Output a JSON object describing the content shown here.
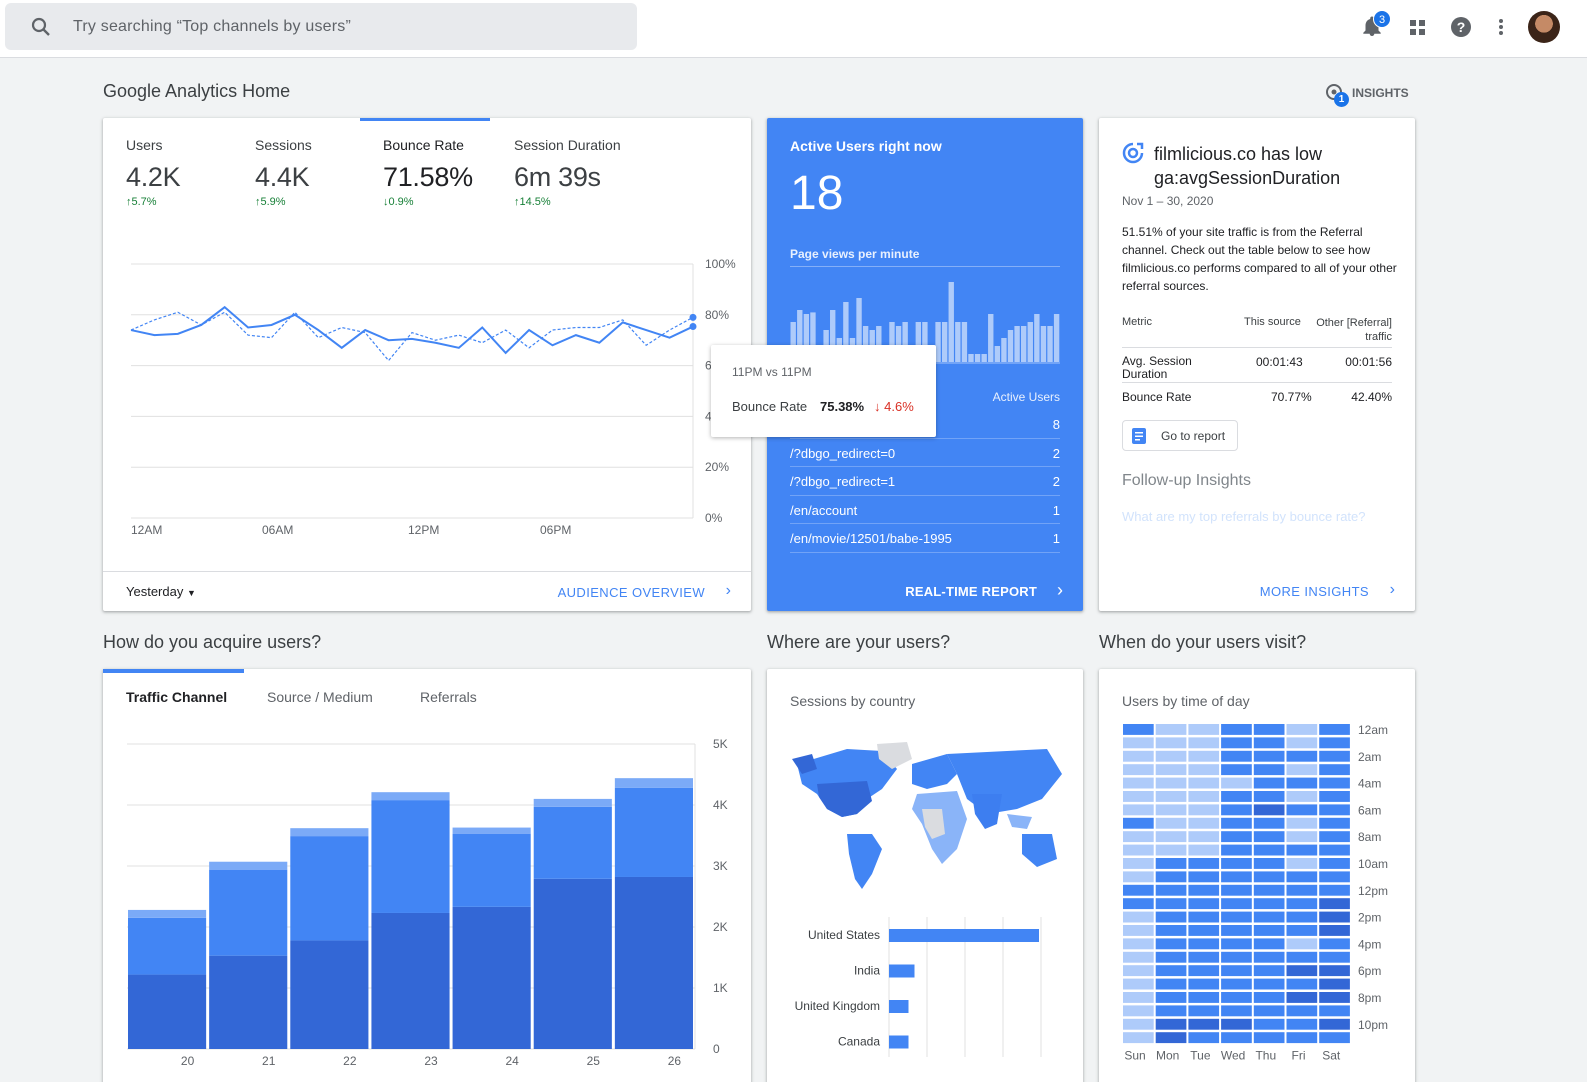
{
  "search": {
    "placeholder": "Try searching “Top channels by users”"
  },
  "topbar": {
    "notifications_count": "3",
    "icons": [
      "bell-icon",
      "apps-icon",
      "help-icon",
      "more-vert-icon"
    ]
  },
  "page": {
    "title": "Google Analytics Home",
    "insights_label": "INSIGHTS",
    "insights_badge": "1"
  },
  "overview": {
    "metrics": [
      {
        "label": "Users",
        "value": "4.2K",
        "change": "5.7%",
        "direction": "up"
      },
      {
        "label": "Sessions",
        "value": "4.4K",
        "change": "5.9%",
        "direction": "up"
      },
      {
        "label": "Bounce Rate",
        "value": "71.58%",
        "change": "0.9%",
        "direction": "down",
        "selected": true
      },
      {
        "label": "Session Duration",
        "value": "6m 39s",
        "change": "14.5%",
        "direction": "up"
      }
    ],
    "date_range": "Yesterday",
    "link": "AUDIENCE OVERVIEW",
    "chart_data": {
      "type": "line",
      "metric": "Bounce Rate",
      "x_labels": [
        "12AM",
        "06AM",
        "12PM",
        "06PM"
      ],
      "y_ticks": [
        "100%",
        "80%",
        "60%",
        "40%",
        "20%",
        "0%"
      ],
      "ylim": [
        0,
        100
      ],
      "series": [
        {
          "name": "",
          "style": "solid",
          "values": [
            74,
            72,
            72.5,
            76,
            83,
            75,
            76,
            80,
            74,
            67,
            74,
            70,
            70.5,
            69,
            67,
            75,
            65,
            74,
            68,
            72,
            69,
            77,
            74,
            71,
            75.38
          ]
        },
        {
          "name": "",
          "style": "dashed",
          "values": [
            74,
            78,
            81,
            76,
            81,
            72,
            71,
            81,
            71,
            75,
            73,
            62,
            73,
            70,
            72,
            69,
            74,
            67,
            74,
            75,
            75,
            78,
            68,
            74,
            79
          ]
        }
      ],
      "tooltip": {
        "title": "11PM vs 11PM",
        "metric": "Bounce Rate",
        "value": "75.38%",
        "change": "4.6%",
        "direction": "down"
      }
    }
  },
  "realtime": {
    "title": "Active Users right now",
    "count": "18",
    "subtitle": "Page views per minute",
    "bars": [
      0.5,
      0.65,
      0.6,
      0.62,
      0.2,
      0.4,
      0.65,
      0.3,
      0.75,
      0.3,
      0.8,
      0.45,
      0.4,
      0.45,
      0.15,
      0.5,
      0.45,
      0.5,
      0.15,
      0.5,
      0.5,
      0.15,
      0.5,
      0.5,
      1.0,
      0.5,
      0.5,
      0.1,
      0.1,
      0.1,
      0.6,
      0.2,
      0.3,
      0.4,
      0.45,
      0.45,
      0.5,
      0.6,
      0.45,
      0.45,
      0.6
    ],
    "table_header": "Active Users",
    "rows": [
      {
        "page": "/",
        "users": "8"
      },
      {
        "page": "/?dbgo_redirect=0",
        "users": "2"
      },
      {
        "page": "/?dbgo_redirect=1",
        "users": "2"
      },
      {
        "page": "/en/account",
        "users": "1"
      },
      {
        "page": "/en/movie/12501/babe-1995",
        "users": "1"
      }
    ],
    "link": "REAL-TIME REPORT"
  },
  "insight": {
    "title": "filmlicious.co has low ga:avgSessionDuration",
    "date": "Nov 1 – 30, 2020",
    "body": "51.51% of your site traffic is from the Referral channel. Check out the table below to see how filmlicious.co performs compared to all of your other referral sources.",
    "table": {
      "headers": [
        "Metric",
        "This source",
        "Other [Referral] traffic"
      ],
      "rows": [
        [
          "Avg. Session Duration",
          "00:01:43",
          "00:01:56"
        ],
        [
          "Bounce Rate",
          "70.77%",
          "42.40%"
        ]
      ]
    },
    "button": "Go to report",
    "followup_title": "Follow-up Insights",
    "followup_question": "What are my top referrals by bounce rate?",
    "link": "MORE INSIGHTS"
  },
  "acquire": {
    "title": "How do you acquire users?",
    "tabs": [
      "Traffic Channel",
      "Source / Medium",
      "Referrals"
    ],
    "chart_data": {
      "type": "bar",
      "stacked": true,
      "categories": [
        "20",
        "21",
        "22",
        "23",
        "24",
        "25",
        "26"
      ],
      "y_ticks": [
        "5K",
        "4K",
        "3K",
        "2K",
        "1K",
        "0"
      ],
      "ylim": [
        0,
        5000
      ],
      "series": [
        {
          "name": "",
          "values": [
            1220,
            1530,
            1780,
            2230,
            2330,
            2790,
            2820
          ]
        },
        {
          "name": "",
          "values": [
            930,
            1410,
            1710,
            1850,
            1200,
            1180,
            1460
          ]
        },
        {
          "name": "",
          "values": [
            130,
            130,
            130,
            130,
            100,
            130,
            160
          ]
        }
      ]
    }
  },
  "where": {
    "title": "Where are your users?",
    "subtitle": "Sessions by country",
    "chart_data": {
      "type": "bar",
      "orientation": "horizontal",
      "categories": [
        "United States",
        "India",
        "United Kingdom",
        "Canada"
      ],
      "values": [
        100,
        17,
        13,
        13
      ]
    }
  },
  "when": {
    "title": "When do your users visit?",
    "subtitle": "Users by time of day",
    "chart_data": {
      "type": "heatmap",
      "days": [
        "Sun",
        "Mon",
        "Tue",
        "Wed",
        "Thu",
        "Fri",
        "Sat"
      ],
      "hour_labels": [
        "12am",
        "2am",
        "4am",
        "6am",
        "8am",
        "10am",
        "12pm",
        "2pm",
        "4pm",
        "6pm",
        "8pm",
        "10pm"
      ],
      "levels": [
        [
          2,
          1,
          1,
          2,
          2,
          1,
          2
        ],
        [
          1,
          1,
          1,
          2,
          2,
          1,
          2
        ],
        [
          1,
          1,
          1,
          2,
          2,
          2,
          2
        ],
        [
          1,
          1,
          1,
          2,
          2,
          1,
          2
        ],
        [
          1,
          1,
          1,
          1,
          2,
          2,
          2
        ],
        [
          1,
          1,
          1,
          2,
          2,
          1,
          2
        ],
        [
          1,
          1,
          1,
          2,
          3,
          2,
          2
        ],
        [
          2,
          1,
          1,
          2,
          2,
          1,
          2
        ],
        [
          1,
          1,
          1,
          2,
          2,
          1,
          2
        ],
        [
          1,
          1,
          1,
          2,
          2,
          2,
          2
        ],
        [
          1,
          2,
          2,
          2,
          2,
          1,
          2
        ],
        [
          1,
          2,
          2,
          2,
          2,
          2,
          2
        ],
        [
          2,
          2,
          2,
          2,
          2,
          2,
          2
        ],
        [
          2,
          2,
          2,
          2,
          2,
          2,
          3
        ],
        [
          1,
          2,
          2,
          2,
          2,
          2,
          3
        ],
        [
          1,
          2,
          2,
          2,
          2,
          2,
          3
        ],
        [
          1,
          2,
          2,
          2,
          2,
          1,
          2
        ],
        [
          1,
          2,
          2,
          2,
          2,
          2,
          2
        ],
        [
          1,
          2,
          2,
          2,
          2,
          3,
          3
        ],
        [
          1,
          2,
          2,
          2,
          2,
          2,
          3
        ],
        [
          1,
          2,
          2,
          2,
          2,
          3,
          3
        ],
        [
          1,
          2,
          2,
          2,
          2,
          2,
          2
        ],
        [
          1,
          3,
          3,
          3,
          2,
          2,
          3
        ],
        [
          1,
          3,
          2,
          2,
          2,
          2,
          2
        ]
      ]
    }
  },
  "colors": {
    "accent": "#4285f4",
    "dark": "#3367d6",
    "positive": "#188038",
    "negative": "#d93025"
  }
}
